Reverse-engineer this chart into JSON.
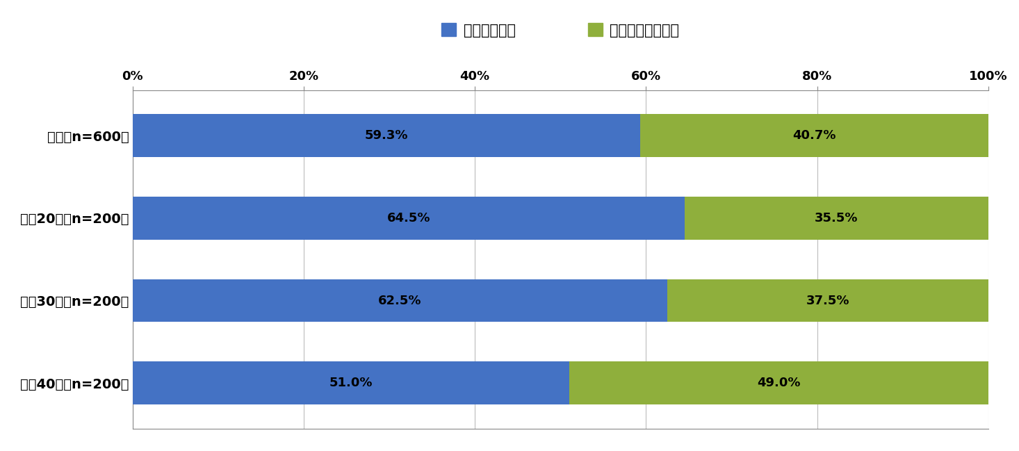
{
  "categories": [
    "全体（n=600）",
    "男性20代（n=200）",
    "男性30代（n=200）",
    "男性40代（n=200）"
  ],
  "blue_values": [
    59.3,
    64.5,
    62.5,
    51.0
  ],
  "green_values": [
    40.7,
    35.5,
    37.5,
    49.0
  ],
  "blue_color": "#4472C4",
  "green_color": "#8FAF3C",
  "blue_label": "面倒だと思う",
  "green_label": "面倒だと思わない",
  "bg_color": "#FFFFFF",
  "text_color": "#000000",
  "bar_height": 0.52,
  "xlim": [
    0,
    100
  ],
  "xticks": [
    0,
    20,
    40,
    60,
    80,
    100
  ],
  "xtick_labels": [
    "0%",
    "20%",
    "40%",
    "60%",
    "80%",
    "100%"
  ],
  "label_fontsize": 14,
  "tick_fontsize": 13,
  "legend_fontsize": 15,
  "value_fontsize": 13
}
